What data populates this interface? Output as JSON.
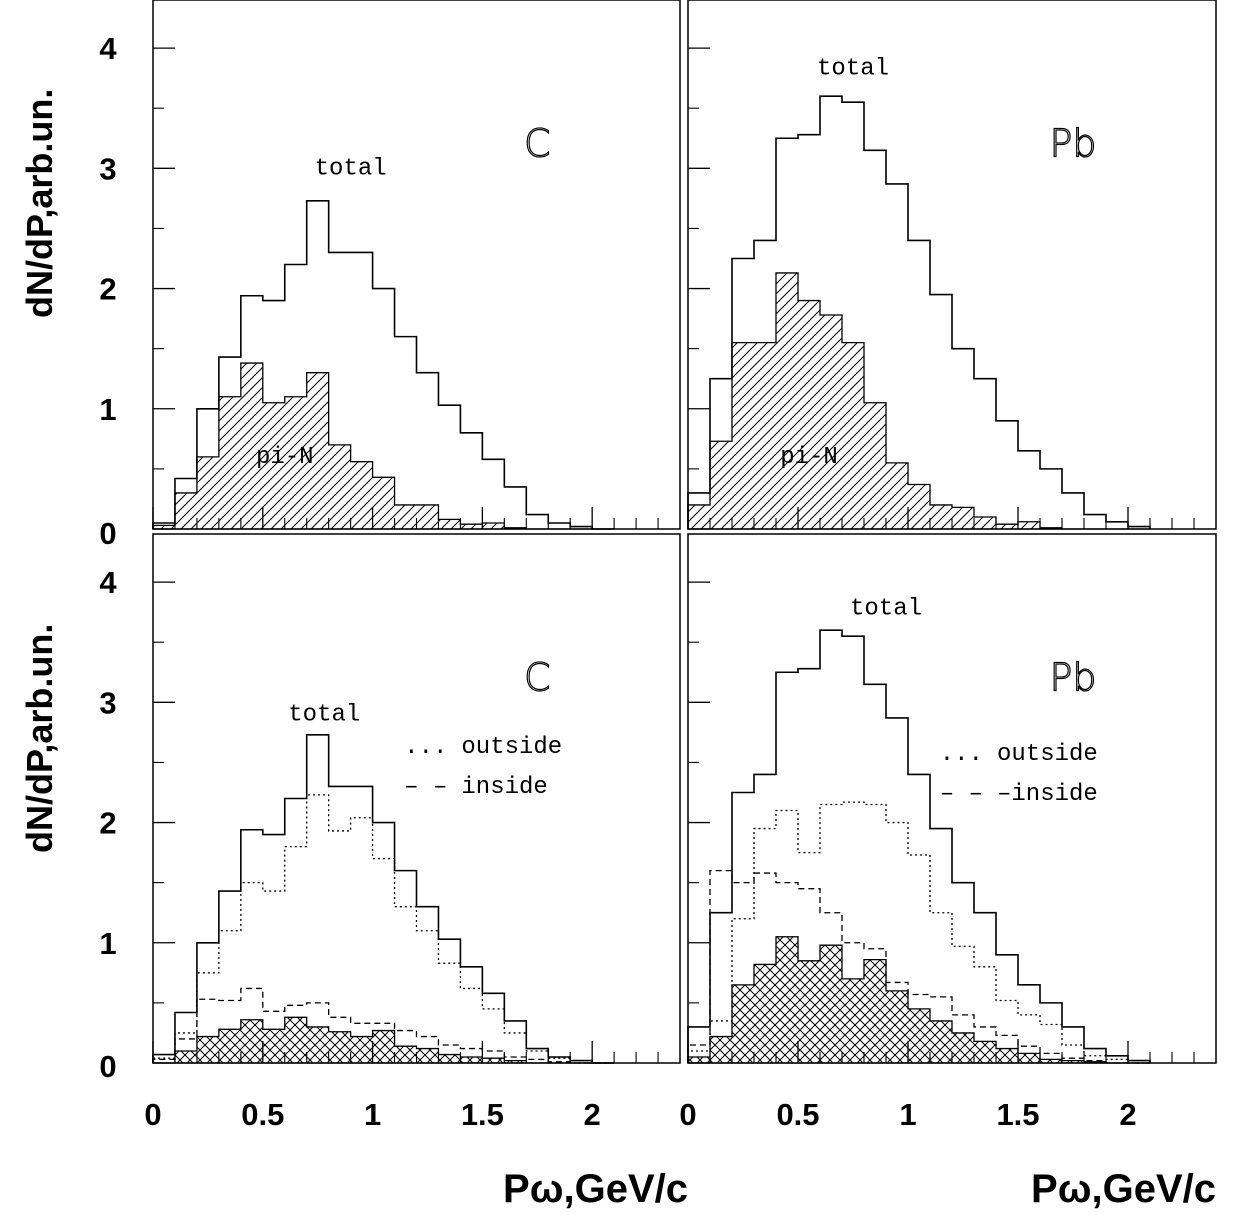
{
  "y_axis_label": "dN/dP,arb.un.",
  "x_axis_label": "Pω,GeV/c",
  "y_ticks": [
    "0",
    "1",
    "2",
    "3",
    "4"
  ],
  "x_ticks": [
    "0",
    "0.5",
    "1",
    "1.5",
    "2"
  ],
  "chart_data": [
    {
      "type": "histogram",
      "panel": "top-left",
      "element_label": "C",
      "xlim": [
        0,
        2.4
      ],
      "ylim": [
        0,
        4.4
      ],
      "bin_edges": [
        0,
        0.1,
        0.2,
        0.3,
        0.4,
        0.5,
        0.6,
        0.7,
        0.8,
        0.9,
        1.0,
        1.1,
        1.2,
        1.3,
        1.4,
        1.5,
        1.6,
        1.7,
        1.8,
        1.9,
        2.0,
        2.1
      ],
      "annotations": [
        "total",
        "pi-N"
      ],
      "series": [
        {
          "name": "total",
          "style": "solid",
          "values": [
            0.05,
            0.42,
            1.0,
            1.43,
            1.94,
            1.9,
            2.2,
            2.73,
            2.3,
            2.3,
            2.0,
            1.6,
            1.3,
            1.03,
            0.8,
            0.58,
            0.35,
            0.12,
            0.05,
            0.02,
            0.0
          ]
        },
        {
          "name": "pi-N",
          "style": "hatched",
          "values": [
            0.03,
            0.3,
            0.6,
            1.1,
            1.38,
            1.05,
            1.1,
            1.3,
            0.7,
            0.56,
            0.43,
            0.2,
            0.2,
            0.08,
            0.04,
            0.05,
            0.01,
            0.0,
            0.0,
            0.0,
            0.0
          ]
        }
      ]
    },
    {
      "type": "histogram",
      "panel": "top-right",
      "element_label": "Pb",
      "xlim": [
        0,
        2.4
      ],
      "ylim": [
        0,
        4.4
      ],
      "bin_edges": [
        0,
        0.1,
        0.2,
        0.3,
        0.4,
        0.5,
        0.6,
        0.7,
        0.8,
        0.9,
        1.0,
        1.1,
        1.2,
        1.3,
        1.4,
        1.5,
        1.6,
        1.7,
        1.8,
        1.9,
        2.0,
        2.1
      ],
      "annotations": [
        "total",
        "pi-N"
      ],
      "series": [
        {
          "name": "total",
          "style": "solid",
          "values": [
            0.3,
            1.25,
            2.25,
            2.4,
            3.25,
            3.28,
            3.6,
            3.55,
            3.15,
            2.87,
            2.4,
            1.95,
            1.5,
            1.25,
            0.9,
            0.65,
            0.5,
            0.3,
            0.12,
            0.06,
            0.02
          ]
        },
        {
          "name": "pi-N",
          "style": "hatched",
          "values": [
            0.2,
            0.73,
            1.55,
            1.55,
            2.13,
            1.9,
            1.78,
            1.55,
            1.05,
            0.55,
            0.37,
            0.2,
            0.18,
            0.1,
            0.04,
            0.06,
            0.01,
            0.0,
            0.0,
            0.0,
            0.0
          ]
        }
      ]
    },
    {
      "type": "histogram",
      "panel": "bottom-left",
      "element_label": "C",
      "xlim": [
        0,
        2.4
      ],
      "ylim": [
        0,
        4.4
      ],
      "bin_edges": [
        0,
        0.1,
        0.2,
        0.3,
        0.4,
        0.5,
        0.6,
        0.7,
        0.8,
        0.9,
        1.0,
        1.1,
        1.2,
        1.3,
        1.4,
        1.5,
        1.6,
        1.7,
        1.8,
        1.9,
        2.0,
        2.1
      ],
      "annotations": [
        "total"
      ],
      "legend": [
        {
          "marker": "...",
          "label": "outside"
        },
        {
          "marker": "– –",
          "label": "inside"
        }
      ],
      "series": [
        {
          "name": "total",
          "style": "solid",
          "values": [
            0.07,
            0.42,
            1.0,
            1.43,
            1.94,
            1.9,
            2.2,
            2.73,
            2.3,
            2.3,
            2.0,
            1.6,
            1.3,
            1.03,
            0.8,
            0.58,
            0.35,
            0.12,
            0.05,
            0.02,
            0.0
          ]
        },
        {
          "name": "outside",
          "style": "dotted",
          "values": [
            0.04,
            0.25,
            0.75,
            1.1,
            1.5,
            1.43,
            1.8,
            2.23,
            1.93,
            2.04,
            1.7,
            1.3,
            1.1,
            0.83,
            0.62,
            0.45,
            0.25,
            0.1,
            0.04,
            0.0,
            0.0
          ]
        },
        {
          "name": "inside",
          "style": "dashed",
          "values": [
            0.03,
            0.2,
            0.53,
            0.52,
            0.62,
            0.43,
            0.48,
            0.5,
            0.38,
            0.33,
            0.33,
            0.27,
            0.22,
            0.15,
            0.12,
            0.1,
            0.05,
            0.03,
            0.01,
            0.0,
            0.0
          ]
        },
        {
          "name": "",
          "style": "crosshatched",
          "values": [
            0.0,
            0.1,
            0.22,
            0.28,
            0.36,
            0.28,
            0.38,
            0.3,
            0.26,
            0.22,
            0.27,
            0.14,
            0.12,
            0.07,
            0.05,
            0.04,
            0.02,
            0.0,
            0.0,
            0.0,
            0.0
          ]
        }
      ]
    },
    {
      "type": "histogram",
      "panel": "bottom-right",
      "element_label": "Pb",
      "xlim": [
        0,
        2.4
      ],
      "ylim": [
        0,
        4.4
      ],
      "bin_edges": [
        0,
        0.1,
        0.2,
        0.3,
        0.4,
        0.5,
        0.6,
        0.7,
        0.8,
        0.9,
        1.0,
        1.1,
        1.2,
        1.3,
        1.4,
        1.5,
        1.6,
        1.7,
        1.8,
        1.9,
        2.0,
        2.1
      ],
      "annotations": [
        "total"
      ],
      "legend": [
        {
          "marker": "...",
          "label": "outside"
        },
        {
          "marker": "– –",
          "label": "–inside"
        }
      ],
      "series": [
        {
          "name": "total",
          "style": "solid",
          "values": [
            0.3,
            1.25,
            2.25,
            2.4,
            3.25,
            3.28,
            3.6,
            3.55,
            3.15,
            2.87,
            2.4,
            1.95,
            1.5,
            1.25,
            0.9,
            0.65,
            0.5,
            0.3,
            0.12,
            0.06,
            0.02
          ]
        },
        {
          "name": "outside",
          "style": "dotted",
          "values": [
            0.1,
            0.35,
            1.2,
            1.95,
            2.1,
            1.75,
            2.15,
            2.17,
            2.15,
            2.0,
            1.73,
            1.25,
            0.97,
            0.8,
            0.52,
            0.4,
            0.32,
            0.15,
            0.06,
            0.03,
            0.0
          ]
        },
        {
          "name": "inside",
          "style": "dashed",
          "values": [
            0.15,
            1.6,
            1.5,
            1.58,
            1.5,
            1.45,
            1.25,
            1.0,
            0.95,
            0.67,
            0.57,
            0.55,
            0.4,
            0.3,
            0.23,
            0.14,
            0.08,
            0.04,
            0.02,
            0.0,
            0.0
          ]
        },
        {
          "name": "",
          "style": "crosshatched",
          "values": [
            0.05,
            0.22,
            0.65,
            0.82,
            1.05,
            0.85,
            0.98,
            0.7,
            0.86,
            0.6,
            0.45,
            0.35,
            0.25,
            0.18,
            0.12,
            0.08,
            0.03,
            0.02,
            0.01,
            0.0,
            0.0
          ]
        }
      ]
    }
  ]
}
